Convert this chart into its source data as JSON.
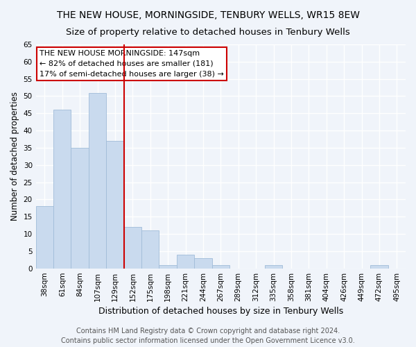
{
  "title": "THE NEW HOUSE, MORNINGSIDE, TENBURY WELLS, WR15 8EW",
  "subtitle": "Size of property relative to detached houses in Tenbury Wells",
  "xlabel": "Distribution of detached houses by size in Tenbury Wells",
  "ylabel": "Number of detached properties",
  "categories": [
    "38sqm",
    "61sqm",
    "84sqm",
    "107sqm",
    "129sqm",
    "152sqm",
    "175sqm",
    "198sqm",
    "221sqm",
    "244sqm",
    "267sqm",
    "289sqm",
    "312sqm",
    "335sqm",
    "358sqm",
    "381sqm",
    "404sqm",
    "426sqm",
    "449sqm",
    "472sqm",
    "495sqm"
  ],
  "values": [
    18,
    46,
    35,
    51,
    37,
    12,
    11,
    1,
    4,
    3,
    1,
    0,
    0,
    1,
    0,
    0,
    0,
    0,
    0,
    1,
    0
  ],
  "bar_color": "#c9daee",
  "bar_edge_color": "#a0bcd8",
  "vline_x": 4.5,
  "vline_color": "#cc0000",
  "annotation_text": "THE NEW HOUSE MORNINGSIDE: 147sqm\n← 82% of detached houses are smaller (181)\n17% of semi-detached houses are larger (38) →",
  "annotation_box_color": "#ffffff",
  "annotation_box_edge": "#cc0000",
  "ylim": [
    0,
    65
  ],
  "yticks": [
    0,
    5,
    10,
    15,
    20,
    25,
    30,
    35,
    40,
    45,
    50,
    55,
    60,
    65
  ],
  "footer1": "Contains HM Land Registry data © Crown copyright and database right 2024.",
  "footer2": "Contains public sector information licensed under the Open Government Licence v3.0.",
  "bg_color": "#f0f4fa",
  "plot_bg_color": "#f0f4fa",
  "grid_color": "#ffffff",
  "title_fontsize": 10,
  "subtitle_fontsize": 9.5,
  "xlabel_fontsize": 9,
  "ylabel_fontsize": 8.5,
  "tick_fontsize": 7.5,
  "annotation_fontsize": 8,
  "footer_fontsize": 7
}
